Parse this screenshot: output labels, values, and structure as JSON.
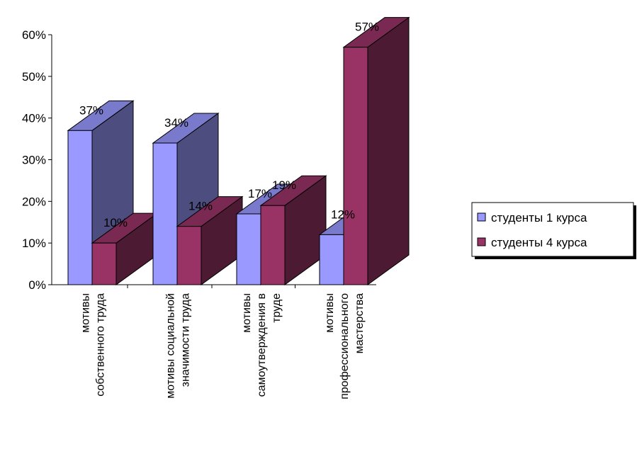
{
  "chart_data": {
    "type": "bar",
    "title": "",
    "xlabel": "",
    "ylabel": "",
    "ylim": [
      0,
      60
    ],
    "yticks": [
      "0%",
      "10%",
      "20%",
      "30%",
      "40%",
      "50%",
      "60%"
    ],
    "categories": [
      [
        "мотивы",
        "собственного труда"
      ],
      [
        "мотивы социальной",
        "значимости труда"
      ],
      [
        "мотивы",
        "самоутверждения в",
        "труде"
      ],
      [
        "мотивы",
        "профессионального",
        "мастерства"
      ]
    ],
    "series": [
      {
        "name": "студенты 1 курса",
        "values": [
          37,
          34,
          17,
          12
        ],
        "labels": [
          "37%",
          "34%",
          "17%",
          "12%"
        ]
      },
      {
        "name": "студенты 4 курса",
        "values": [
          10,
          14,
          19,
          57
        ],
        "labels": [
          "10%",
          "14%",
          "19%",
          "57%"
        ]
      }
    ],
    "colors": {
      "s1_front": "#9999ff",
      "s1_side": "#4d4d80",
      "s1_top": "#7a7acc",
      "s2_front": "#993366",
      "s2_side": "#4d1a33",
      "s2_top": "#7a2952"
    },
    "grid": false,
    "legend": "right",
    "three_d": true
  }
}
